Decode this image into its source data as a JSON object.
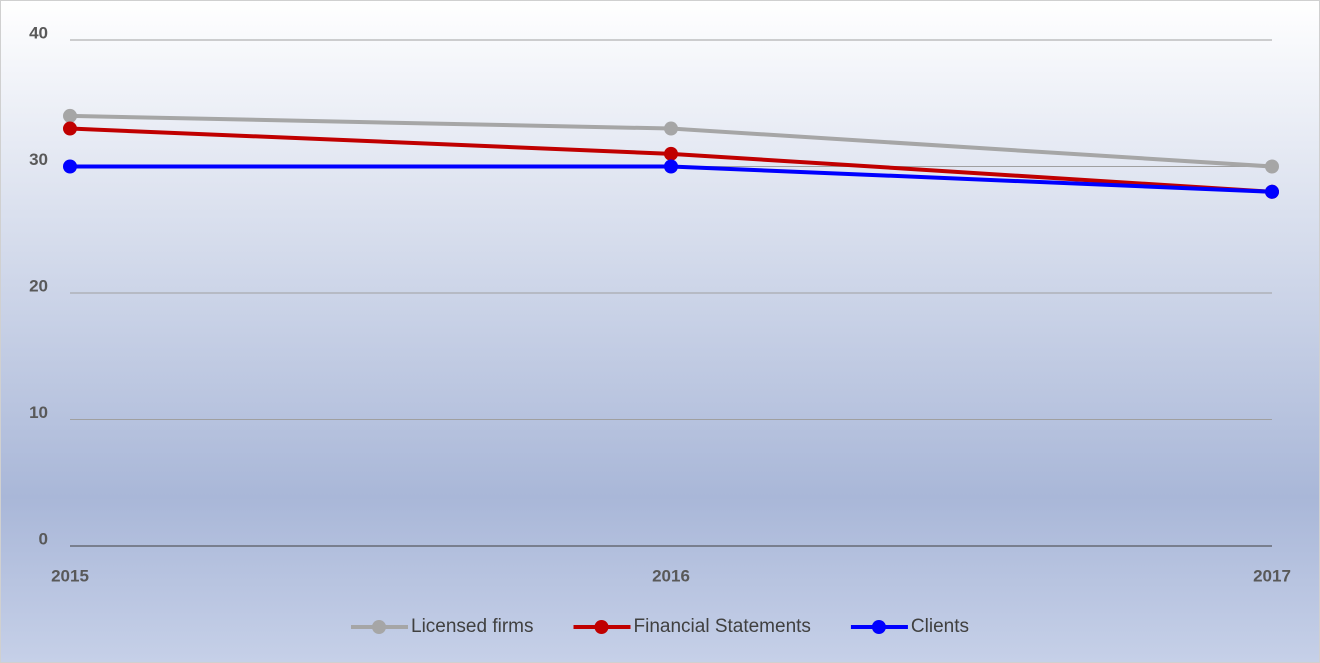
{
  "chart_data": {
    "type": "line",
    "categories": [
      "2015",
      "2016",
      "2017"
    ],
    "series": [
      {
        "name": "Licensed firms",
        "color": "#a6a6a6",
        "values": [
          34,
          33,
          30
        ]
      },
      {
        "name": "Financial Statements",
        "color": "#c00000",
        "values": [
          33,
          31,
          28
        ]
      },
      {
        "name": "Clients",
        "color": "#0000ff",
        "values": [
          30,
          30,
          28
        ]
      }
    ],
    "ylim": [
      0,
      40
    ],
    "yticks": [
      0,
      10,
      20,
      30,
      40
    ],
    "grid": true,
    "legend": "bottom"
  }
}
